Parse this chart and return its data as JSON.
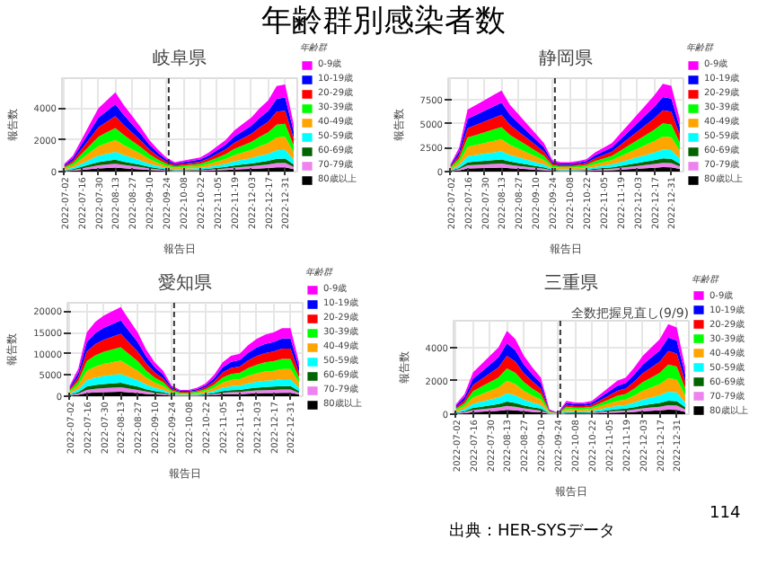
{
  "chart_data": [
    {
      "type": "area",
      "stacked": true,
      "title": "岐阜県",
      "xlabel": "報告日",
      "ylabel": "報告数",
      "legend_title": "年齢群",
      "legend": "right",
      "grid": true,
      "annotations": [
        "年齢群別感染者数"
      ],
      "x": [
        "2022-07-02",
        "2022-07-09",
        "2022-07-16",
        "2022-07-23",
        "2022-07-30",
        "2022-08-06",
        "2022-08-13",
        "2022-08-20",
        "2022-08-27",
        "2022-09-03",
        "2022-09-10",
        "2022-09-17",
        "2022-09-24",
        "2022-10-01",
        "2022-10-08",
        "2022-10-15",
        "2022-10-22",
        "2022-10-29",
        "2022-11-05",
        "2022-11-12",
        "2022-11-19",
        "2022-11-26",
        "2022-12-03",
        "2022-12-10",
        "2022-12-17",
        "2022-12-24",
        "2022-12-31",
        "2023-01-07"
      ],
      "xlim": [
        "2022-06-30",
        "2023-01-10"
      ],
      "xticks": [
        "2022-07-02",
        "2022-07-16",
        "2022-07-30",
        "2022-08-13",
        "2022-08-27",
        "2022-09-10",
        "2022-09-24",
        "2022-10-08",
        "2022-10-22",
        "2022-11-05",
        "2022-11-19",
        "2022-12-03",
        "2022-12-17",
        "2022-12-31"
      ],
      "ylim": [
        0,
        5900
      ],
      "yticks": [
        0,
        2000,
        4000
      ],
      "ref_lines": [
        {
          "axis": "x",
          "value": "2022-09-26",
          "color": "#333333",
          "line_style": "dashed"
        }
      ],
      "series": [
        {
          "name": "80歳以上",
          "color": "#000000",
          "values": [
            25,
            50,
            100,
            150,
            200,
            225,
            250,
            210,
            175,
            140,
            100,
            70,
            45,
            30,
            35,
            40,
            45,
            60,
            80,
            100,
            130,
            150,
            170,
            200,
            225,
            270,
            275,
            150
          ]
        },
        {
          "name": "70-79歳",
          "color": "#ee82ee",
          "values": [
            25,
            50,
            100,
            150,
            200,
            225,
            250,
            210,
            175,
            140,
            100,
            70,
            45,
            30,
            35,
            40,
            45,
            60,
            80,
            100,
            130,
            150,
            170,
            200,
            225,
            270,
            275,
            150
          ]
        },
        {
          "name": "60-69歳",
          "color": "#006400",
          "values": [
            25,
            50,
            100,
            150,
            200,
            225,
            250,
            210,
            175,
            140,
            100,
            70,
            45,
            30,
            35,
            40,
            45,
            60,
            80,
            100,
            130,
            150,
            170,
            200,
            225,
            270,
            275,
            150
          ]
        },
        {
          "name": "50-59歳",
          "color": "#00ffff",
          "values": [
            50,
            100,
            200,
            300,
            400,
            450,
            500,
            420,
            350,
            280,
            200,
            140,
            90,
            60,
            70,
            80,
            90,
            120,
            160,
            200,
            260,
            300,
            340,
            400,
            450,
            540,
            550,
            300
          ]
        },
        {
          "name": "40-49歳",
          "color": "#ffa500",
          "values": [
            75,
            150,
            300,
            450,
            600,
            675,
            750,
            630,
            525,
            420,
            300,
            210,
            135,
            90,
            105,
            120,
            135,
            180,
            240,
            300,
            390,
            450,
            510,
            600,
            675,
            810,
            825,
            450
          ]
        },
        {
          "name": "30-39歳",
          "color": "#00ff00",
          "values": [
            75,
            150,
            300,
            450,
            600,
            675,
            750,
            630,
            525,
            420,
            300,
            210,
            135,
            90,
            105,
            120,
            135,
            180,
            240,
            300,
            390,
            450,
            510,
            600,
            675,
            810,
            825,
            450
          ]
        },
        {
          "name": "20-29歳",
          "color": "#ff0000",
          "values": [
            75,
            150,
            300,
            450,
            600,
            675,
            750,
            630,
            525,
            420,
            300,
            210,
            135,
            90,
            105,
            120,
            135,
            180,
            240,
            300,
            390,
            450,
            510,
            600,
            675,
            810,
            825,
            450
          ]
        },
        {
          "name": "10-19歳",
          "color": "#0000ff",
          "values": [
            75,
            150,
            300,
            450,
            600,
            675,
            750,
            630,
            525,
            420,
            300,
            210,
            135,
            90,
            105,
            120,
            135,
            180,
            240,
            300,
            390,
            450,
            510,
            600,
            675,
            810,
            825,
            450
          ]
        },
        {
          "name": "0-9歳",
          "color": "#ff00ff",
          "values": [
            75,
            150,
            300,
            450,
            600,
            675,
            750,
            630,
            525,
            420,
            300,
            210,
            135,
            90,
            105,
            120,
            135,
            180,
            240,
            300,
            390,
            450,
            510,
            600,
            675,
            810,
            825,
            450
          ]
        }
      ]
    },
    {
      "type": "area",
      "stacked": true,
      "title": "静岡県",
      "xlabel": "報告日",
      "ylabel": "報告数",
      "legend_title": "年齢群",
      "legend": "right",
      "grid": true,
      "x": [
        "2022-07-02",
        "2022-07-09",
        "2022-07-16",
        "2022-07-23",
        "2022-07-30",
        "2022-08-06",
        "2022-08-13",
        "2022-08-20",
        "2022-08-27",
        "2022-09-03",
        "2022-09-10",
        "2022-09-17",
        "2022-09-24",
        "2022-10-01",
        "2022-10-08",
        "2022-10-15",
        "2022-10-22",
        "2022-10-29",
        "2022-11-05",
        "2022-11-12",
        "2022-11-19",
        "2022-11-26",
        "2022-12-03",
        "2022-12-10",
        "2022-12-17",
        "2022-12-24",
        "2022-12-31",
        "2023-01-07"
      ],
      "xlim": [
        "2022-06-30",
        "2023-01-10"
      ],
      "xticks": [
        "2022-07-02",
        "2022-07-16",
        "2022-07-30",
        "2022-08-13",
        "2022-08-27",
        "2022-09-10",
        "2022-09-24",
        "2022-10-08",
        "2022-10-22",
        "2022-11-05",
        "2022-11-19",
        "2022-12-03",
        "2022-12-17",
        "2022-12-31"
      ],
      "ylim": [
        0,
        9800
      ],
      "yticks": [
        0,
        2500,
        5000,
        7500
      ],
      "ref_lines": [
        {
          "axis": "x",
          "value": "2022-09-26",
          "color": "#333333",
          "line_style": "dashed"
        }
      ],
      "series": [
        {
          "name": "80歳以上",
          "color": "#000000",
          "values": [
            40,
            125,
            325,
            350,
            375,
            400,
            425,
            350,
            300,
            250,
            200,
            150,
            60,
            50,
            50,
            55,
            65,
            100,
            125,
            150,
            200,
            250,
            300,
            350,
            400,
            460,
            450,
            275
          ]
        },
        {
          "name": "70-79歳",
          "color": "#ee82ee",
          "values": [
            40,
            125,
            325,
            350,
            375,
            400,
            425,
            350,
            300,
            250,
            200,
            150,
            60,
            50,
            50,
            55,
            65,
            100,
            125,
            150,
            200,
            250,
            300,
            350,
            400,
            460,
            450,
            275
          ]
        },
        {
          "name": "60-69歳",
          "color": "#006400",
          "values": [
            40,
            125,
            325,
            350,
            375,
            400,
            425,
            350,
            300,
            250,
            200,
            150,
            60,
            50,
            50,
            55,
            65,
            100,
            125,
            150,
            200,
            250,
            300,
            350,
            400,
            460,
            450,
            275
          ]
        },
        {
          "name": "50-59歳",
          "color": "#00ffff",
          "values": [
            80,
            250,
            650,
            700,
            750,
            800,
            850,
            700,
            600,
            500,
            400,
            300,
            120,
            100,
            100,
            110,
            130,
            200,
            250,
            300,
            400,
            500,
            600,
            700,
            800,
            920,
            900,
            550
          ]
        },
        {
          "name": "40-49歳",
          "color": "#ffa500",
          "values": [
            120,
            375,
            975,
            1050,
            1125,
            1200,
            1275,
            1050,
            900,
            750,
            600,
            450,
            180,
            150,
            150,
            165,
            195,
            300,
            375,
            450,
            600,
            750,
            900,
            1050,
            1200,
            1380,
            1350,
            825
          ]
        },
        {
          "name": "30-39歳",
          "color": "#00ff00",
          "values": [
            120,
            375,
            975,
            1050,
            1125,
            1200,
            1275,
            1050,
            900,
            750,
            600,
            450,
            180,
            150,
            150,
            165,
            195,
            300,
            375,
            450,
            600,
            750,
            900,
            1050,
            1200,
            1380,
            1350,
            825
          ]
        },
        {
          "name": "20-29歳",
          "color": "#ff0000",
          "values": [
            120,
            375,
            975,
            1050,
            1125,
            1200,
            1275,
            1050,
            900,
            750,
            600,
            450,
            180,
            150,
            150,
            165,
            195,
            300,
            375,
            450,
            600,
            750,
            900,
            1050,
            1200,
            1380,
            1350,
            825
          ]
        },
        {
          "name": "10-19歳",
          "color": "#0000ff",
          "values": [
            120,
            375,
            975,
            1050,
            1125,
            1200,
            1275,
            1050,
            900,
            750,
            600,
            450,
            180,
            150,
            150,
            165,
            195,
            300,
            375,
            450,
            600,
            750,
            900,
            1050,
            1200,
            1380,
            1350,
            825
          ]
        },
        {
          "name": "0-9歳",
          "color": "#ff00ff",
          "values": [
            120,
            375,
            975,
            1050,
            1125,
            1200,
            1275,
            1050,
            900,
            750,
            600,
            450,
            180,
            150,
            150,
            165,
            195,
            300,
            375,
            450,
            600,
            750,
            900,
            1050,
            1200,
            1380,
            1350,
            825
          ]
        }
      ]
    },
    {
      "type": "area",
      "stacked": true,
      "title": "愛知県",
      "xlabel": "報告日",
      "ylabel": "報告数",
      "legend_title": "年齢群",
      "legend": "right",
      "grid": true,
      "x": [
        "2022-07-02",
        "2022-07-09",
        "2022-07-16",
        "2022-07-23",
        "2022-07-30",
        "2022-08-06",
        "2022-08-13",
        "2022-08-20",
        "2022-08-27",
        "2022-09-03",
        "2022-09-10",
        "2022-09-17",
        "2022-09-24",
        "2022-10-01",
        "2022-10-08",
        "2022-10-15",
        "2022-10-22",
        "2022-10-29",
        "2022-11-05",
        "2022-11-12",
        "2022-11-19",
        "2022-11-26",
        "2022-12-03",
        "2022-12-10",
        "2022-12-17",
        "2022-12-24",
        "2022-12-31",
        "2023-01-07"
      ],
      "xlim": [
        "2022-06-30",
        "2023-01-10"
      ],
      "xticks": [
        "2022-07-02",
        "2022-07-16",
        "2022-07-30",
        "2022-08-13",
        "2022-08-27",
        "2022-09-10",
        "2022-09-24",
        "2022-10-08",
        "2022-10-22",
        "2022-11-05",
        "2022-11-19",
        "2022-12-03",
        "2022-12-17",
        "2022-12-31"
      ],
      "ylim": [
        0,
        22000
      ],
      "yticks": [
        0,
        5000,
        10000,
        15000,
        20000
      ],
      "ref_lines": [
        {
          "axis": "x",
          "value": "2022-09-26",
          "color": "#333333",
          "line_style": "dashed"
        }
      ],
      "series": [
        {
          "name": "80歳以上",
          "color": "#000000",
          "values": [
            125,
            325,
            750,
            875,
            950,
            1000,
            1050,
            900,
            750,
            550,
            400,
            300,
            125,
            75,
            75,
            100,
            150,
            250,
            400,
            475,
            500,
            600,
            675,
            725,
            750,
            800,
            800,
            400
          ]
        },
        {
          "name": "70-79歳",
          "color": "#ee82ee",
          "values": [
            125,
            325,
            750,
            875,
            950,
            1000,
            1050,
            900,
            750,
            550,
            400,
            300,
            125,
            75,
            75,
            100,
            150,
            250,
            400,
            475,
            500,
            600,
            675,
            725,
            750,
            800,
            800,
            400
          ]
        },
        {
          "name": "60-69歳",
          "color": "#006400",
          "values": [
            125,
            325,
            750,
            875,
            950,
            1000,
            1050,
            900,
            750,
            550,
            400,
            300,
            125,
            75,
            75,
            100,
            150,
            250,
            400,
            475,
            500,
            600,
            675,
            725,
            750,
            800,
            800,
            400
          ]
        },
        {
          "name": "50-59歳",
          "color": "#00ffff",
          "values": [
            250,
            650,
            1500,
            1750,
            1900,
            2000,
            2100,
            1800,
            1500,
            1100,
            800,
            600,
            250,
            150,
            150,
            200,
            300,
            500,
            800,
            950,
            1000,
            1200,
            1350,
            1450,
            1500,
            1600,
            1600,
            800
          ]
        },
        {
          "name": "40-49歳",
          "color": "#ffa500",
          "values": [
            375,
            975,
            2250,
            2625,
            2850,
            3000,
            3150,
            2700,
            2250,
            1650,
            1200,
            900,
            375,
            225,
            225,
            300,
            450,
            750,
            1200,
            1425,
            1500,
            1800,
            2025,
            2175,
            2250,
            2400,
            2400,
            1200
          ]
        },
        {
          "name": "30-39歳",
          "color": "#00ff00",
          "values": [
            375,
            975,
            2250,
            2625,
            2850,
            3000,
            3150,
            2700,
            2250,
            1650,
            1200,
            900,
            375,
            225,
            225,
            300,
            450,
            750,
            1200,
            1425,
            1500,
            1800,
            2025,
            2175,
            2250,
            2400,
            2400,
            1200
          ]
        },
        {
          "name": "20-29歳",
          "color": "#ff0000",
          "values": [
            375,
            975,
            2250,
            2625,
            2850,
            3000,
            3150,
            2700,
            2250,
            1650,
            1200,
            900,
            375,
            225,
            225,
            300,
            450,
            750,
            1200,
            1425,
            1500,
            1800,
            2025,
            2175,
            2250,
            2400,
            2400,
            1200
          ]
        },
        {
          "name": "10-19歳",
          "color": "#0000ff",
          "values": [
            375,
            975,
            2250,
            2625,
            2850,
            3000,
            3150,
            2700,
            2250,
            1650,
            1200,
            900,
            375,
            225,
            225,
            300,
            450,
            750,
            1200,
            1425,
            1500,
            1800,
            2025,
            2175,
            2250,
            2400,
            2400,
            1200
          ]
        },
        {
          "name": "0-9歳",
          "color": "#ff00ff",
          "values": [
            375,
            975,
            2250,
            2625,
            2850,
            3000,
            3150,
            2700,
            2250,
            1650,
            1200,
            900,
            375,
            225,
            225,
            300,
            450,
            750,
            1200,
            1425,
            1500,
            1800,
            2025,
            2175,
            2250,
            2400,
            2400,
            1200
          ]
        }
      ]
    },
    {
      "type": "area",
      "stacked": true,
      "title": "三重県",
      "xlabel": "報告日",
      "ylabel": "報告数",
      "legend_title": "年齢群",
      "legend": "right",
      "grid": true,
      "annotations": [
        "全数把握見直し(9/9)",
        "出典：HER-SYSデータ",
        "114"
      ],
      "x": [
        "2022-07-02",
        "2022-07-09",
        "2022-07-16",
        "2022-07-23",
        "2022-07-30",
        "2022-08-06",
        "2022-08-13",
        "2022-08-20",
        "2022-08-27",
        "2022-09-03",
        "2022-09-10",
        "2022-09-17",
        "2022-09-24",
        "2022-10-01",
        "2022-10-08",
        "2022-10-15",
        "2022-10-22",
        "2022-10-29",
        "2022-11-05",
        "2022-11-12",
        "2022-11-19",
        "2022-11-26",
        "2022-12-03",
        "2022-12-10",
        "2022-12-17",
        "2022-12-24",
        "2022-12-31",
        "2023-01-07"
      ],
      "xlim": [
        "2022-06-30",
        "2023-01-10"
      ],
      "xticks": [
        "2022-07-02",
        "2022-07-16",
        "2022-07-30",
        "2022-08-13",
        "2022-08-27",
        "2022-09-10",
        "2022-09-24",
        "2022-10-08",
        "2022-10-22",
        "2022-11-05",
        "2022-11-19",
        "2022-12-03",
        "2022-12-17",
        "2022-12-31"
      ],
      "ylim": [
        0,
        5600
      ],
      "yticks": [
        0,
        2000,
        4000
      ],
      "ref_lines": [
        {
          "axis": "x",
          "value": "2022-09-26",
          "color": "#333333",
          "line_style": "dashed"
        }
      ],
      "series": [
        {
          "name": "80歳以上",
          "color": "#000000",
          "values": [
            30,
            60,
            125,
            150,
            175,
            200,
            250,
            225,
            175,
            140,
            110,
            15,
            5,
            40,
            35,
            35,
            40,
            60,
            80,
            100,
            110,
            140,
            175,
            200,
            225,
            270,
            260,
            140
          ]
        },
        {
          "name": "70-79歳",
          "color": "#ee82ee",
          "values": [
            30,
            60,
            125,
            150,
            175,
            200,
            250,
            225,
            175,
            140,
            110,
            15,
            5,
            40,
            35,
            35,
            40,
            60,
            80,
            100,
            110,
            140,
            175,
            200,
            225,
            270,
            260,
            140
          ]
        },
        {
          "name": "60-69歳",
          "color": "#006400",
          "values": [
            30,
            60,
            125,
            150,
            175,
            200,
            250,
            225,
            175,
            140,
            110,
            15,
            5,
            40,
            35,
            35,
            40,
            60,
            80,
            100,
            110,
            140,
            175,
            200,
            225,
            270,
            260,
            140
          ]
        },
        {
          "name": "50-59歳",
          "color": "#00ffff",
          "values": [
            60,
            120,
            250,
            300,
            350,
            400,
            500,
            450,
            350,
            280,
            220,
            30,
            10,
            80,
            70,
            70,
            80,
            120,
            160,
            200,
            220,
            280,
            350,
            400,
            450,
            540,
            520,
            280
          ]
        },
        {
          "name": "40-49歳",
          "color": "#ffa500",
          "values": [
            90,
            180,
            375,
            450,
            525,
            600,
            750,
            675,
            525,
            420,
            330,
            45,
            15,
            120,
            105,
            105,
            120,
            180,
            240,
            300,
            330,
            420,
            525,
            600,
            675,
            810,
            780,
            420
          ]
        },
        {
          "name": "30-39歳",
          "color": "#00ff00",
          "values": [
            90,
            180,
            375,
            450,
            525,
            600,
            750,
            675,
            525,
            420,
            330,
            45,
            15,
            120,
            105,
            105,
            120,
            180,
            240,
            300,
            330,
            420,
            525,
            600,
            675,
            810,
            780,
            420
          ]
        },
        {
          "name": "20-29歳",
          "color": "#ff0000",
          "values": [
            90,
            180,
            375,
            450,
            525,
            600,
            750,
            675,
            525,
            420,
            330,
            45,
            15,
            120,
            105,
            105,
            120,
            180,
            240,
            300,
            330,
            420,
            525,
            600,
            675,
            810,
            780,
            420
          ]
        },
        {
          "name": "10-19歳",
          "color": "#0000ff",
          "values": [
            90,
            180,
            375,
            450,
            525,
            600,
            750,
            675,
            525,
            420,
            330,
            45,
            15,
            120,
            105,
            105,
            120,
            180,
            240,
            300,
            330,
            420,
            525,
            600,
            675,
            810,
            780,
            420
          ]
        },
        {
          "name": "0-9歳",
          "color": "#ff00ff",
          "values": [
            90,
            180,
            375,
            450,
            525,
            600,
            750,
            675,
            525,
            420,
            330,
            45,
            15,
            120,
            105,
            105,
            120,
            180,
            240,
            300,
            330,
            420,
            525,
            600,
            675,
            810,
            780,
            420
          ]
        }
      ]
    }
  ]
}
